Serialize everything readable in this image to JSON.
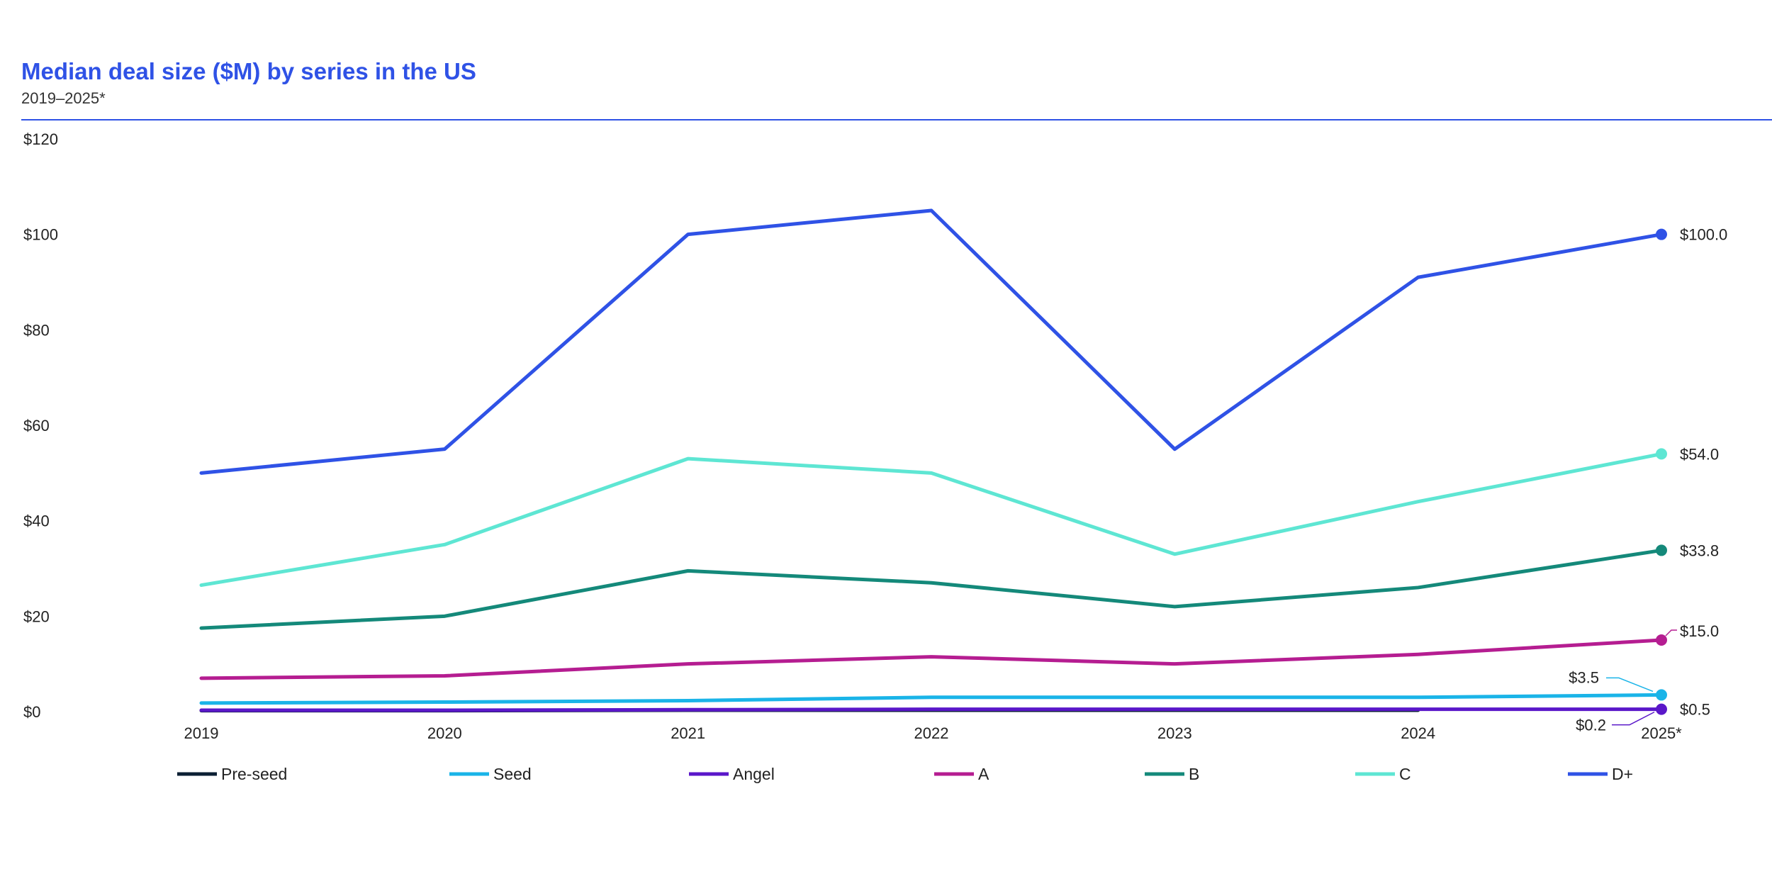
{
  "header": {
    "title": "Median deal size ($M) by series in the US",
    "subtitle": "2019–2025*"
  },
  "chart_data": {
    "type": "line",
    "title": "Median deal size ($M) by series in the US",
    "subtitle": "2019–2025*",
    "x": [
      "2019",
      "2020",
      "2021",
      "2022",
      "2023",
      "2024",
      "2025*"
    ],
    "ylim": [
      0,
      120
    ],
    "yticks": [
      0,
      20,
      40,
      60,
      80,
      100,
      120
    ],
    "ytick_labels": [
      "$0",
      "$20",
      "$40",
      "$60",
      "$80",
      "$100",
      "$120"
    ],
    "grid": false,
    "legend_position": "bottom",
    "series": [
      {
        "name": "Pre-seed",
        "color": "#0b1f33",
        "values": [
          0.2,
          0.2,
          0.3,
          0.3,
          0.3,
          0.3,
          null
        ]
      },
      {
        "name": "Seed",
        "color": "#1ab4e8",
        "values": [
          1.8,
          2.0,
          2.3,
          3.0,
          3.0,
          3.0,
          3.5
        ],
        "end_label": "$3.5"
      },
      {
        "name": "Angel",
        "color": "#5a17c9",
        "values": [
          0.3,
          0.3,
          0.4,
          0.5,
          0.5,
          0.5,
          0.5
        ],
        "end_label": "$0.5"
      },
      {
        "name": "A",
        "color": "#b51d91",
        "values": [
          7.0,
          7.5,
          10.0,
          11.5,
          10.0,
          12.0,
          15.0
        ],
        "end_label": "$15.0"
      },
      {
        "name": "B",
        "color": "#14897a",
        "values": [
          17.5,
          20.0,
          29.5,
          27.0,
          22.0,
          26.0,
          33.8
        ],
        "end_label": "$33.8"
      },
      {
        "name": "C",
        "color": "#5ee6d3",
        "values": [
          26.5,
          35.0,
          53.0,
          50.0,
          33.0,
          44.0,
          54.0
        ],
        "end_label": "$54.0"
      },
      {
        "name": "D+",
        "color": "#2f52e6",
        "values": [
          50.0,
          55.0,
          100.0,
          105.0,
          55.0,
          91.0,
          100.0
        ],
        "end_label": "$100.0"
      }
    ],
    "annotations": [
      "$0.2"
    ]
  }
}
